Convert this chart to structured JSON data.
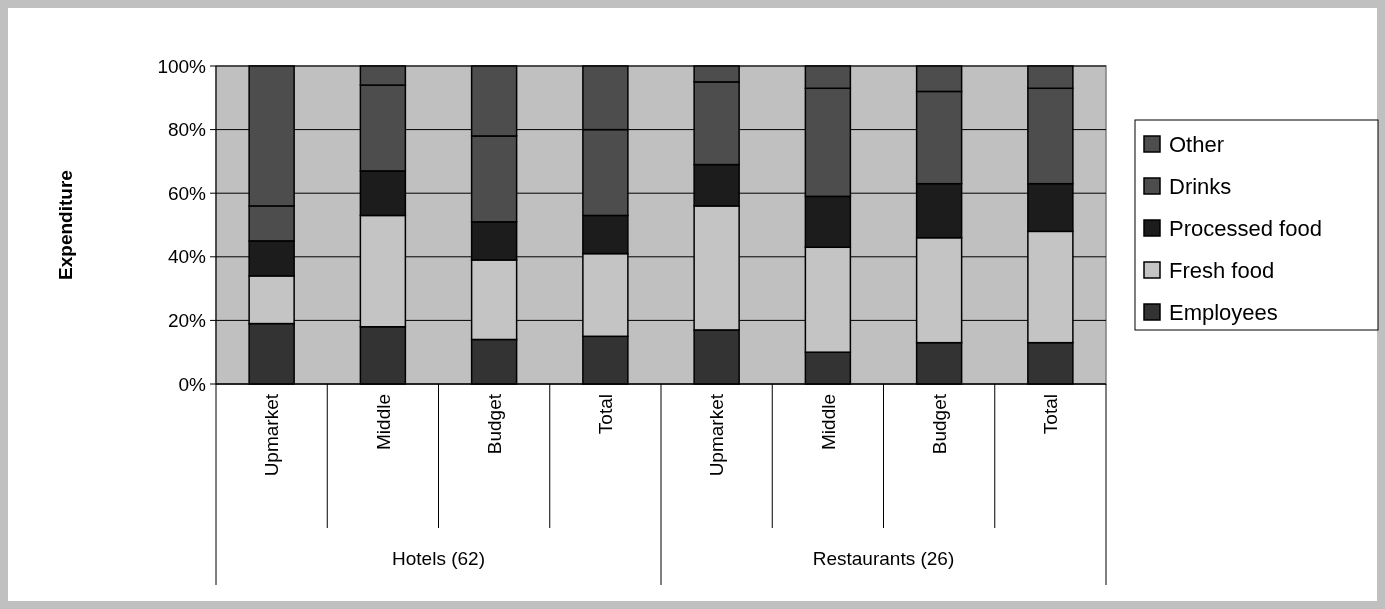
{
  "chart_data": {
    "type": "bar",
    "stacked": true,
    "ylabel": "Expenditure",
    "categories": [
      "Upmarket",
      "Middle",
      "Budget",
      "Total",
      "Upmarket",
      "Middle",
      "Budget",
      "Total"
    ],
    "annotations": [
      "Hotels (62)",
      "Restaurants (26)"
    ],
    "series": [
      {
        "name": "Employees",
        "color": "#333333",
        "values": [
          19,
          18,
          14,
          15,
          17,
          10,
          13,
          13
        ]
      },
      {
        "name": "Fresh food",
        "color": "#c4c4c4",
        "values": [
          15,
          35,
          25,
          26,
          39,
          33,
          33,
          35
        ]
      },
      {
        "name": "Processed food",
        "color": "#1c1c1c",
        "values": [
          11,
          14,
          12,
          12,
          13,
          16,
          17,
          15
        ]
      },
      {
        "name": "Drinks",
        "color": "#4d4d4d",
        "values": [
          11,
          27,
          27,
          27,
          26,
          34,
          29,
          30
        ]
      },
      {
        "name": "Other",
        "color": "#4d4d4d",
        "values": [
          44,
          6,
          22,
          20,
          5,
          7,
          8,
          7
        ]
      }
    ],
    "ylim": [
      0,
      100
    ],
    "yticks": [
      {
        "value": 0,
        "label": "0%"
      },
      {
        "value": 20,
        "label": "20%"
      },
      {
        "value": 40,
        "label": "40%"
      },
      {
        "value": 60,
        "label": "60%"
      },
      {
        "value": 80,
        "label": "80%"
      },
      {
        "value": 100,
        "label": "100%"
      }
    ],
    "grid": "y",
    "legend": "right"
  }
}
